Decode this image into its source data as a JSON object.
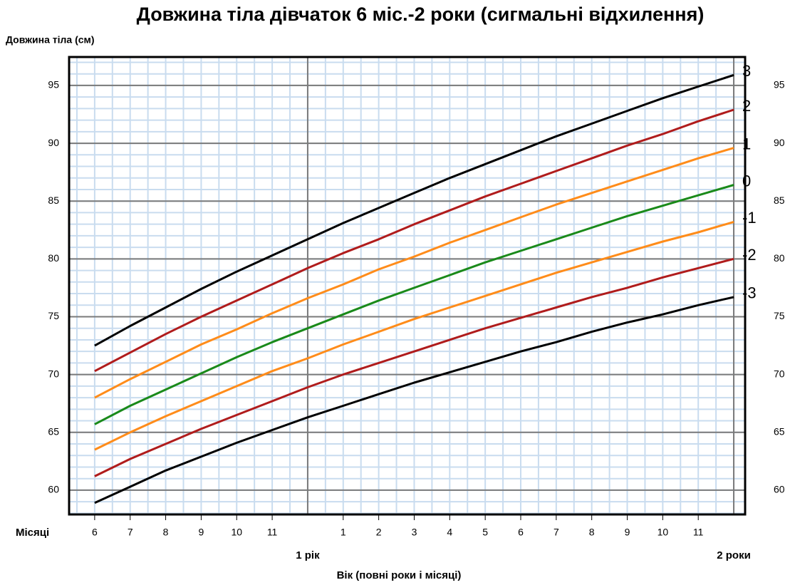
{
  "chart_data": {
    "type": "line",
    "title": "Довжина тіла дівчаток 6 міс.-2 роки (сигмальні відхилення)",
    "y_axis_label": "Довжина тіла (см)",
    "x_axis_label": "Вік (повні роки і місяці)",
    "x_row_label": "Місяці",
    "x": [
      6,
      7,
      8,
      9,
      10,
      11,
      12,
      13,
      14,
      15,
      16,
      17,
      18,
      19,
      20,
      21,
      22,
      23,
      24
    ],
    "series": [
      {
        "name": "3",
        "color": "#000000",
        "values": [
          72.5,
          74.2,
          75.8,
          77.4,
          78.9,
          80.3,
          81.7,
          83.1,
          84.4,
          85.7,
          87.0,
          88.2,
          89.4,
          90.6,
          91.7,
          92.8,
          93.9,
          94.9,
          95.9
        ]
      },
      {
        "name": "2",
        "color": "#b01c1c",
        "values": [
          70.3,
          71.9,
          73.5,
          75.0,
          76.4,
          77.8,
          79.2,
          80.5,
          81.7,
          83.0,
          84.2,
          85.4,
          86.5,
          87.6,
          88.7,
          89.8,
          90.8,
          91.9,
          92.9
        ]
      },
      {
        "name": "1",
        "color": "#ff8c1a",
        "values": [
          68.0,
          69.6,
          71.1,
          72.6,
          73.9,
          75.3,
          76.6,
          77.8,
          79.1,
          80.2,
          81.4,
          82.5,
          83.6,
          84.7,
          85.7,
          86.7,
          87.7,
          88.7,
          89.6
        ]
      },
      {
        "name": "0",
        "color": "#1a8a1a",
        "values": [
          65.7,
          67.3,
          68.7,
          70.1,
          71.5,
          72.8,
          74.0,
          75.2,
          76.4,
          77.5,
          78.6,
          79.7,
          80.7,
          81.7,
          82.7,
          83.7,
          84.6,
          85.5,
          86.4
        ]
      },
      {
        "name": "-1",
        "color": "#ff8c1a",
        "values": [
          63.5,
          65.0,
          66.4,
          67.7,
          69.0,
          70.3,
          71.4,
          72.6,
          73.7,
          74.8,
          75.8,
          76.8,
          77.8,
          78.8,
          79.7,
          80.6,
          81.5,
          82.3,
          83.2
        ]
      },
      {
        "name": "-2",
        "color": "#b01c1c",
        "values": [
          61.2,
          62.7,
          64.0,
          65.3,
          66.5,
          67.7,
          68.9,
          70.0,
          71.0,
          72.0,
          73.0,
          74.0,
          74.9,
          75.8,
          76.7,
          77.5,
          78.4,
          79.2,
          80.0
        ]
      },
      {
        "name": "-3",
        "color": "#000000",
        "values": [
          58.9,
          60.3,
          61.7,
          62.9,
          64.1,
          65.2,
          66.3,
          67.3,
          68.3,
          69.3,
          70.2,
          71.1,
          72.0,
          72.8,
          73.7,
          74.5,
          75.2,
          76.0,
          76.7
        ]
      }
    ],
    "xlim": [
      5.28,
      24.32
    ],
    "ylim": [
      57.9,
      97.46
    ],
    "xticks": [
      6,
      7,
      8,
      9,
      10,
      11,
      {
        "value": 13,
        "label": "1"
      },
      {
        "value": 14,
        "label": "2"
      },
      {
        "value": 15,
        "label": "3"
      },
      {
        "value": 16,
        "label": "4"
      },
      {
        "value": 17,
        "label": "5"
      },
      {
        "value": 18,
        "label": "6"
      },
      {
        "value": 19,
        "label": "7"
      },
      {
        "value": 20,
        "label": "8"
      },
      {
        "value": 21,
        "label": "9"
      },
      {
        "value": 22,
        "label": "10"
      },
      {
        "value": 23,
        "label": "11"
      }
    ],
    "year_ticks": [
      {
        "value": 12,
        "label": "1 рік"
      },
      {
        "value": 24,
        "label": "2 роки"
      }
    ],
    "yticks": [
      60,
      65,
      70,
      75,
      80,
      85,
      90,
      95
    ],
    "grid": true,
    "x_minor_step": 0.5,
    "y_minor_step": 1
  }
}
